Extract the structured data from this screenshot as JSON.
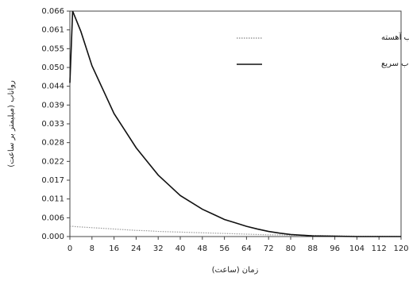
{
  "chart_data": {
    "type": "line",
    "x_label": "زمان (ساعت)",
    "y_label": "رواناب (میلیمتر بر ساعت)",
    "x": [
      0,
      1,
      2,
      4,
      8,
      12,
      16,
      20,
      24,
      28,
      32,
      36,
      40,
      44,
      48,
      52,
      56,
      60,
      64,
      68,
      72,
      76,
      80,
      88,
      96,
      104,
      112,
      120
    ],
    "series": [
      {
        "name": "هیدروگراف واحد رواناب آهسته",
        "color": "#9a9a9a",
        "dash": "dotted",
        "values": [
          0.003,
          0.003,
          0.0029,
          0.0028,
          0.0026,
          0.0024,
          0.0022,
          0.002,
          0.0018,
          0.0017,
          0.0015,
          0.0014,
          0.0013,
          0.0012,
          0.0011,
          0.001,
          0.0009,
          0.0008,
          0.0007,
          0.0006,
          0.0005,
          0.0005,
          0.0004,
          0.0003,
          0.0002,
          0.0001,
          0.0001,
          0
        ]
      },
      {
        "name": "هیدروگراف واحد رواناب سریع",
        "color": "#111111",
        "dash": "solid",
        "values": [
          0.045,
          0.066,
          0.064,
          0.06,
          0.05,
          0.043,
          0.036,
          0.031,
          0.026,
          0.022,
          0.018,
          0.015,
          0.012,
          0.01,
          0.008,
          0.0065,
          0.005,
          0.004,
          0.003,
          0.0022,
          0.0015,
          0.001,
          0.0006,
          0.0002,
          0.0001,
          0,
          0,
          0
        ]
      }
    ],
    "xlim": [
      0,
      120
    ],
    "xticks": [
      0,
      8,
      16,
      24,
      32,
      40,
      48,
      56,
      64,
      72,
      80,
      88,
      96,
      104,
      112,
      120
    ],
    "ylim": [
      0,
      0.066
    ],
    "yticks": [
      {
        "value": 0,
        "label": "0.000"
      },
      {
        "value": 0.0055,
        "label": "0.006"
      },
      0.011,
      {
        "value": 0.0165,
        "label": "0.017"
      },
      0.022,
      {
        "value": 0.0275,
        "label": "0.028"
      },
      0.033,
      {
        "value": 0.0385,
        "label": "0.039"
      },
      0.044,
      {
        "value": 0.0495,
        "label": "0.050"
      },
      0.055,
      {
        "value": 0.0605,
        "label": "0.061"
      },
      0.066
    ],
    "legend": "top-right"
  }
}
